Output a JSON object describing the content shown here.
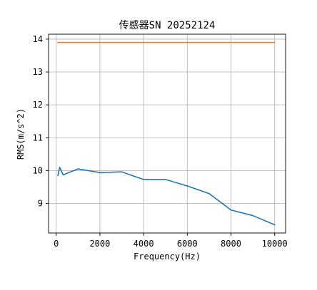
{
  "chart_data": {
    "type": "line",
    "title": "传感器SN 20252124",
    "xlabel": "Frequency(Hz)",
    "ylabel": "RMS(m/s^2)",
    "xlim": [
      -350,
      10500
    ],
    "ylim": [
      8.1,
      14.15
    ],
    "grid": true,
    "x_ticks": [
      0,
      2000,
      4000,
      6000,
      8000,
      10000
    ],
    "y_ticks": [
      9,
      10,
      11,
      12,
      13,
      14
    ],
    "x_tick_labels": [
      "0",
      "2000",
      "4000",
      "6000",
      "8000",
      "10000"
    ],
    "y_tick_labels": [
      "9",
      "10",
      "11",
      "12",
      "13",
      "14"
    ],
    "series": [
      {
        "color": "#1f77b4",
        "x": [
          80,
          160,
          315,
          1000,
          2000,
          3000,
          4000,
          5000,
          6000,
          7000,
          8000,
          9000,
          10000
        ],
        "y": [
          9.85,
          10.1,
          9.87,
          10.05,
          9.94,
          9.96,
          9.73,
          9.73,
          9.53,
          9.3,
          8.8,
          8.63,
          8.35
        ]
      },
      {
        "color": "#ff7f0e",
        "x": [
          80,
          10000
        ],
        "y": [
          13.9,
          13.9
        ]
      }
    ]
  }
}
